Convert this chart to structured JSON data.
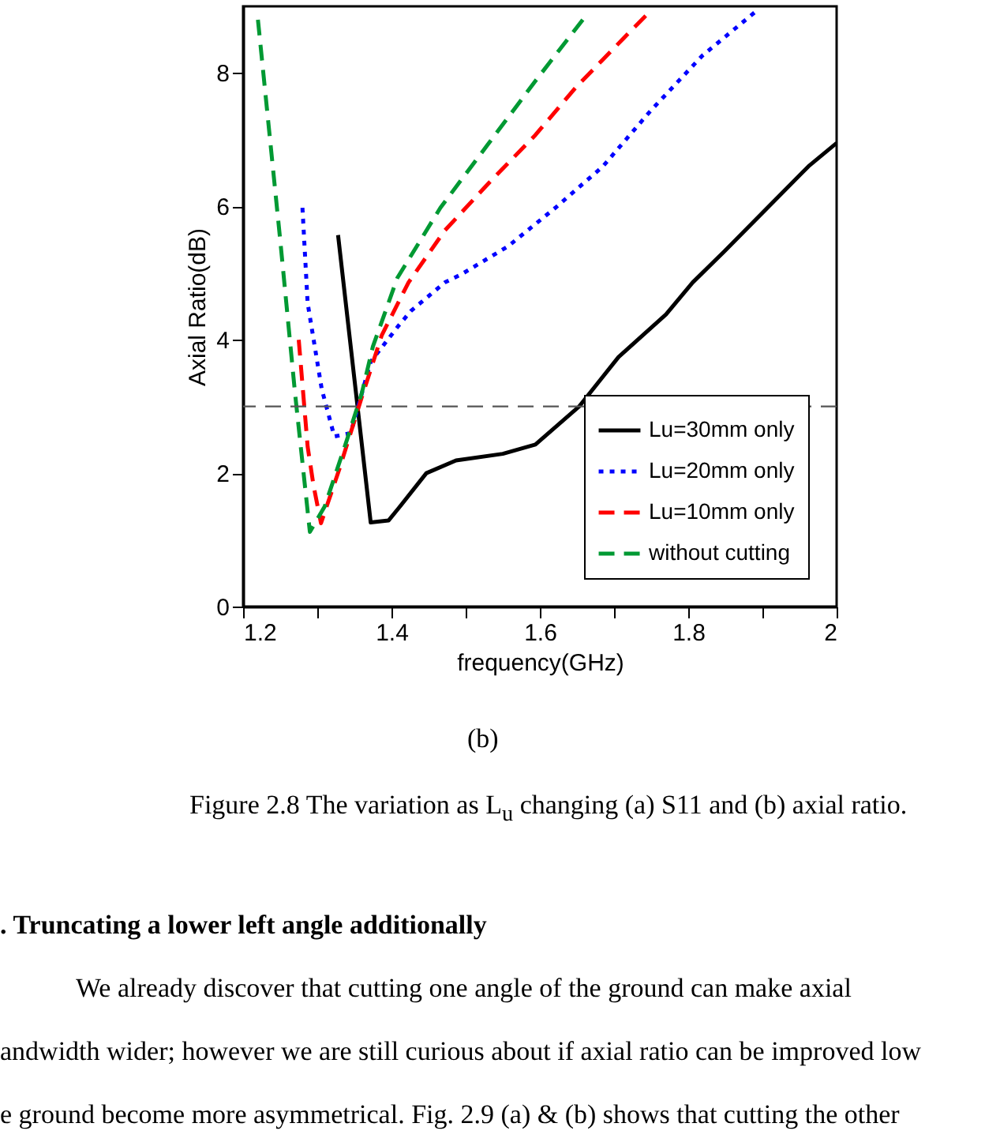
{
  "chart_data": {
    "type": "line",
    "xlabel": "frequency(GHz)",
    "ylabel": "Axial Ratio(dB)",
    "xlim": [
      1.2,
      2
    ],
    "ylim": [
      0,
      9
    ],
    "xticks": [
      1.2,
      {
        "value": 1.3,
        "label": null
      },
      1.4,
      {
        "value": 1.5,
        "label": null
      },
      1.6,
      {
        "value": 1.7,
        "label": null
      },
      1.8,
      {
        "value": 1.9,
        "label": null
      },
      2
    ],
    "yticks": [
      0,
      2,
      4,
      6,
      8
    ],
    "grid": false,
    "legend": "bottom right",
    "series": [
      {
        "name": "Lu=30mm only",
        "color": "#000000",
        "line_style": "solid",
        "x": [
          1.328,
          1.372,
          1.396,
          1.41,
          1.447,
          1.487,
          1.55,
          1.594,
          1.653,
          1.706,
          1.77,
          1.806,
          1.849,
          1.962,
          2.0
        ],
        "values": [
          5.57,
          1.26,
          1.29,
          1.48,
          2.0,
          2.19,
          2.29,
          2.43,
          3.0,
          3.74,
          4.38,
          4.86,
          5.33,
          6.6,
          6.95
        ]
      },
      {
        "name": "Lu=20mm only",
        "color": "#0000ff",
        "line_style": "dotted",
        "x": [
          1.28,
          1.287,
          1.306,
          1.323,
          1.345,
          1.372,
          1.408,
          1.426,
          1.472,
          1.494,
          1.557,
          1.621,
          1.685,
          1.749,
          1.819,
          1.894
        ],
        "values": [
          5.98,
          4.55,
          3.26,
          2.55,
          2.6,
          3.67,
          4.19,
          4.43,
          4.86,
          4.98,
          5.4,
          5.98,
          6.6,
          7.43,
          8.26,
          8.95
        ]
      },
      {
        "name": "Lu=10mm only",
        "color": "#ff0000",
        "line_style": "dashed",
        "x": [
          1.275,
          1.287,
          1.295,
          1.305,
          1.33,
          1.36,
          1.387,
          1.423,
          1.472,
          1.532,
          1.594,
          1.649,
          1.711,
          1.743
        ],
        "values": [
          4.0,
          2.4,
          1.81,
          1.25,
          2.07,
          3.14,
          4.07,
          4.86,
          5.64,
          6.36,
          7.07,
          7.79,
          8.5,
          8.86
        ]
      },
      {
        "name": "without cutting",
        "color": "#009933",
        "line_style": "dashed",
        "x": [
          1.22,
          1.25,
          1.27,
          1.29,
          1.31,
          1.34,
          1.36,
          1.375,
          1.408,
          1.466,
          1.53,
          1.594,
          1.66
        ],
        "values": [
          8.8,
          5.5,
          3.2,
          1.12,
          1.5,
          2.5,
          3.2,
          3.9,
          4.93,
          5.98,
          6.93,
          7.88,
          8.83
        ]
      }
    ],
    "ref_lines": [
      {
        "axis": "y",
        "value": 3,
        "color": "#555555",
        "line_style": "dashed"
      }
    ],
    "annotations": [
      "(b)",
      "Figure 2.8 The variation as L$_{u}$ changing (a) S11 and (b) axial ratio.",
      ". Truncating a lower left angle additionally",
      "We already discover that cutting one angle of the ground can make axial",
      "andwidth wider; however we are still curious about if axial ratio can be improved low",
      "e ground become more asymmetrical. Fig. 2.9 (a) & (b) shows that cutting the other"
    ]
  }
}
